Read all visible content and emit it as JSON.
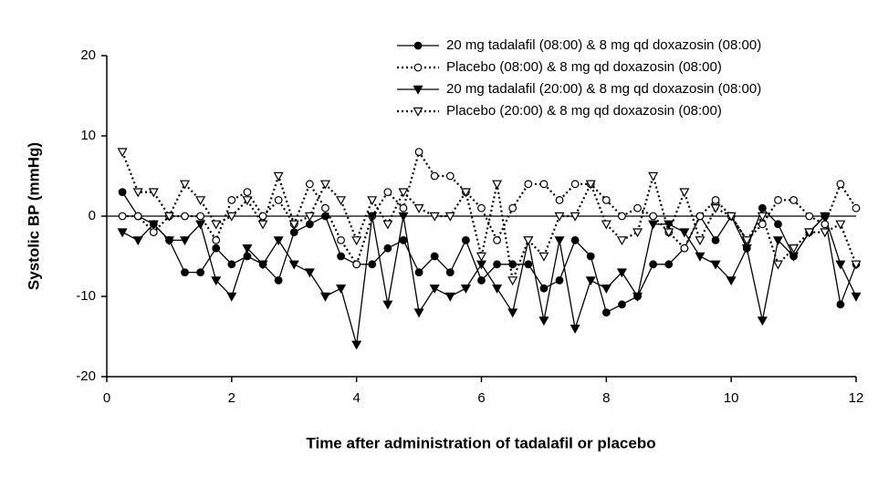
{
  "chart_data": {
    "type": "line",
    "xlabel": "Time after administration of tadalafil or placebo",
    "ylabel": "Systolic BP (mmHg)",
    "x": [
      0.25,
      0.5,
      0.75,
      1,
      1.25,
      1.5,
      1.75,
      2,
      2.25,
      2.5,
      2.75,
      3,
      3.25,
      3.5,
      3.75,
      4,
      4.25,
      4.5,
      4.75,
      5,
      5.25,
      5.5,
      5.75,
      6,
      6.25,
      6.5,
      6.75,
      7,
      7.25,
      7.5,
      7.75,
      8,
      8.25,
      8.5,
      8.75,
      9,
      9.25,
      9.5,
      9.75,
      10,
      10.25,
      10.5,
      10.75,
      11,
      11.25,
      11.5,
      11.75,
      12
    ],
    "xlim": [
      0,
      12
    ],
    "xticks": [
      0,
      2,
      4,
      6,
      8,
      10,
      12
    ],
    "ylim": [
      -20,
      20
    ],
    "yticks": [
      -20,
      -10,
      0,
      10,
      20
    ],
    "legend": "top-right",
    "series": [
      {
        "name": "20 mg tadalafil (08:00) & 8 mg qd doxazosin (08:00)",
        "color": "#000000",
        "line_style": "solid",
        "marker": "filled-circle",
        "values": [
          3,
          0,
          -1,
          -3,
          -7,
          -7,
          -4,
          -6,
          -5,
          -6,
          -8,
          -2,
          -1,
          0,
          -5,
          -6,
          -6,
          -4,
          -3,
          -7,
          -5,
          -7,
          -3,
          -8,
          -6,
          -6,
          -6,
          -9,
          -8,
          -3,
          -5,
          -12,
          -11,
          -10,
          -6,
          -6,
          -4,
          0,
          -3,
          0,
          -4,
          1,
          -1,
          -5,
          -2,
          0,
          -11,
          -6
        ]
      },
      {
        "name": "Placebo (08:00) & 8 mg qd doxazosin (08:00)",
        "color": "#000000",
        "line_style": "dotted",
        "marker": "open-circle",
        "values": [
          0,
          0,
          -2,
          0,
          0,
          0,
          -3,
          2,
          3,
          0,
          2,
          -1,
          4,
          1,
          -3,
          -6,
          0,
          3,
          1,
          8,
          5,
          5,
          3,
          1,
          -3,
          1,
          4,
          4,
          2,
          4,
          4,
          2,
          0,
          1,
          0,
          -2,
          -4,
          0,
          2,
          0,
          -3,
          -1,
          2,
          2,
          0,
          -1,
          4,
          1
        ]
      },
      {
        "name": "20 mg tadalafil (20:00) & 8 mg qd doxazosin (08:00)",
        "color": "#000000",
        "line_style": "solid",
        "marker": "filled-triangle",
        "values": [
          -2,
          -3,
          -1,
          -3,
          -3,
          -1,
          -8,
          -10,
          -4,
          -6,
          -3,
          -6,
          -7,
          -10,
          -9,
          -16,
          0,
          -11,
          0,
          -12,
          -9,
          -10,
          -9,
          -6,
          -9,
          -12,
          -3,
          -13,
          -3,
          -14,
          -8,
          -9,
          -7,
          -10,
          -1,
          -1,
          -2,
          -5,
          -6,
          -8,
          -4,
          -13,
          -3,
          -5,
          -2,
          0,
          -6,
          -10
        ]
      },
      {
        "name": "Placebo (20:00) & 8 mg qd doxazosin (08:00)",
        "color": "#000000",
        "line_style": "dotted",
        "marker": "open-triangle",
        "values": [
          8,
          3,
          3,
          0,
          4,
          2,
          -1,
          0,
          2,
          -1,
          5,
          -1,
          0,
          4,
          2,
          -3,
          2,
          -1,
          3,
          1,
          0,
          0,
          3,
          -5,
          4,
          -8,
          -3,
          -5,
          0,
          0,
          4,
          -1,
          -3,
          -2,
          5,
          -2,
          3,
          -3,
          1,
          0,
          -3,
          0,
          -6,
          -4,
          -2,
          -2,
          -1,
          -6
        ]
      }
    ]
  }
}
